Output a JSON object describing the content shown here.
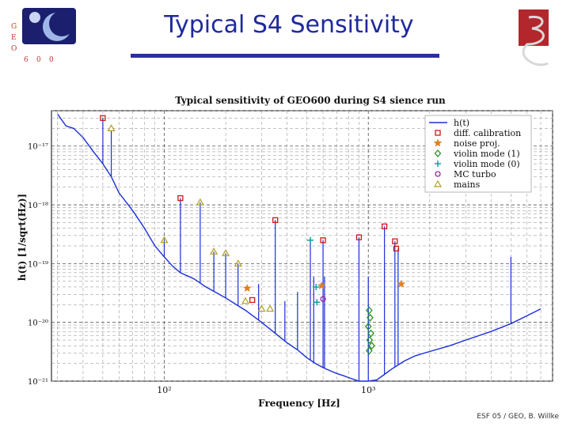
{
  "slide": {
    "title": "Typical S4 Sensitivity",
    "footer": "ESF 05 / GEO, B. Willke",
    "logo_left_letters": [
      "G",
      "E",
      "O",
      "6",
      "0",
      "0"
    ],
    "brand_color": "#1f2a9c",
    "logo_right_color": "#b3262b"
  },
  "chart_data": {
    "type": "line",
    "title": "Typical sensitivity of GEO600 during S4 sience run",
    "xlabel": "Frequency [Hz]",
    "ylabel": "h(t) [1/sqrt(Hz)]",
    "xscale": "log",
    "yscale": "log",
    "xlim": [
      28,
      8000
    ],
    "ylim": [
      1e-21,
      4e-17
    ],
    "x_ticks": [
      "10²",
      "10³"
    ],
    "y_ticks": [
      "10⁻¹⁷",
      "10⁻¹⁸",
      "10⁻¹⁹",
      "10⁻²⁰",
      "10⁻²¹"
    ],
    "grid": true,
    "legend_position": "top-right",
    "legend": [
      {
        "label": "h(t)",
        "marker": "line",
        "color": "#1a2fd6"
      },
      {
        "label": "diff. calibration",
        "marker": "square",
        "color": "#d01818"
      },
      {
        "label": "noise proj.",
        "marker": "star",
        "color": "#e08020"
      },
      {
        "label": "violin mode (1)",
        "marker": "diamond",
        "color": "#1a8c1a"
      },
      {
        "label": "violin mode (0)",
        "marker": "plus",
        "color": "#10a0a0"
      },
      {
        "label": "MC turbo",
        "marker": "circle",
        "color": "#a020a0"
      },
      {
        "label": "mains",
        "marker": "triangle",
        "color": "#b0a020"
      }
    ],
    "series": [
      {
        "name": "h(t)",
        "x": [
          30,
          33,
          36,
          40,
          45,
          50,
          55,
          60,
          70,
          80,
          90,
          100,
          110,
          120,
          140,
          160,
          180,
          200,
          250,
          300,
          350,
          400,
          450,
          500,
          550,
          600,
          650,
          700,
          750,
          800,
          900,
          1000,
          1100,
          1200,
          1300,
          1500,
          1700,
          2000,
          2500,
          3000,
          4000,
          5000,
          6000,
          7000
        ],
        "y": [
          3.5e-17,
          2.2e-17,
          2e-17,
          1.4e-17,
          8e-18,
          5e-18,
          3e-18,
          1.6e-18,
          8e-19,
          4e-19,
          2e-19,
          1.3e-19,
          9e-20,
          7e-20,
          5.5e-20,
          4e-20,
          3.2e-20,
          2.6e-20,
          1.6e-20,
          1e-20,
          6.5e-21,
          4.5e-21,
          3.4e-21,
          2.5e-21,
          2e-21,
          1.7e-21,
          1.5e-21,
          1.35e-21,
          1.25e-21,
          1.15e-21,
          1e-21,
          1e-21,
          1.05e-21,
          1.3e-21,
          1.6e-21,
          2.2e-21,
          2.7e-21,
          3.2e-21,
          4e-21,
          5e-21,
          7e-21,
          9.5e-21,
          1.3e-20,
          1.7e-20
        ]
      }
    ],
    "peaks": [
      {
        "x": 50,
        "y": 3e-17
      },
      {
        "x": 55,
        "y": 1.8e-17
      },
      {
        "x": 100,
        "y": 2.5e-19
      },
      {
        "x": 120,
        "y": 1.3e-18
      },
      {
        "x": 150,
        "y": 1.1e-18
      },
      {
        "x": 175,
        "y": 1.6e-19
      },
      {
        "x": 200,
        "y": 1.5e-19
      },
      {
        "x": 230,
        "y": 1e-19
      },
      {
        "x": 290,
        "y": 4.5e-20
      },
      {
        "x": 350,
        "y": 5.5e-19
      },
      {
        "x": 390,
        "y": 2.3e-20
      },
      {
        "x": 450,
        "y": 3.3e-20
      },
      {
        "x": 520,
        "y": 2.5e-19
      },
      {
        "x": 540,
        "y": 6e-20
      },
      {
        "x": 600,
        "y": 2.5e-19
      },
      {
        "x": 610,
        "y": 6e-20
      },
      {
        "x": 900,
        "y": 2.8e-19
      },
      {
        "x": 1000,
        "y": 6e-20
      },
      {
        "x": 1200,
        "y": 4.3e-19
      },
      {
        "x": 1350,
        "y": 2.4e-19
      },
      {
        "x": 1400,
        "y": 1.8e-19
      },
      {
        "x": 5000,
        "y": 1.3e-19
      }
    ],
    "markers": [
      {
        "type": "square",
        "x": 50,
        "y": 3e-17
      },
      {
        "type": "square",
        "x": 120,
        "y": 1.3e-18
      },
      {
        "type": "square",
        "x": 350,
        "y": 5.5e-19
      },
      {
        "type": "square",
        "x": 600,
        "y": 2.5e-19
      },
      {
        "type": "square",
        "x": 900,
        "y": 2.8e-19
      },
      {
        "type": "square",
        "x": 1200,
        "y": 4.3e-19
      },
      {
        "type": "square",
        "x": 1350,
        "y": 2.4e-19
      },
      {
        "type": "square",
        "x": 1370,
        "y": 1.8e-19
      },
      {
        "type": "square",
        "x": 270,
        "y": 2.4e-20
      },
      {
        "type": "triangle",
        "x": 55,
        "y": 2e-17
      },
      {
        "type": "triangle",
        "x": 100,
        "y": 2.5e-19
      },
      {
        "type": "triangle",
        "x": 150,
        "y": 1.1e-18
      },
      {
        "type": "triangle",
        "x": 175,
        "y": 1.6e-19
      },
      {
        "type": "triangle",
        "x": 200,
        "y": 1.5e-19
      },
      {
        "type": "triangle",
        "x": 230,
        "y": 1e-19
      },
      {
        "type": "triangle",
        "x": 250,
        "y": 2.3e-20
      },
      {
        "type": "triangle",
        "x": 300,
        "y": 1.7e-20
      },
      {
        "type": "triangle",
        "x": 330,
        "y": 1.7e-20
      },
      {
        "type": "star",
        "x": 255,
        "y": 3.8e-20
      },
      {
        "type": "star",
        "x": 590,
        "y": 4.2e-20
      },
      {
        "type": "star",
        "x": 1450,
        "y": 4.5e-20
      },
      {
        "type": "circle",
        "x": 600,
        "y": 2.5e-20
      },
      {
        "type": "plus",
        "x": 520,
        "y": 2.5e-19
      },
      {
        "type": "plus",
        "x": 555,
        "y": 4e-20
      },
      {
        "type": "plus",
        "x": 560,
        "y": 2.2e-20
      },
      {
        "type": "diamond",
        "x": 1010,
        "y": 1.6e-20
      },
      {
        "type": "diamond",
        "x": 1020,
        "y": 1.2e-20
      },
      {
        "type": "diamond",
        "x": 1000,
        "y": 8.5e-21
      },
      {
        "type": "diamond",
        "x": 1030,
        "y": 6.5e-21
      },
      {
        "type": "diamond",
        "x": 1015,
        "y": 5e-21
      },
      {
        "type": "diamond",
        "x": 1040,
        "y": 4e-21
      },
      {
        "type": "diamond",
        "x": 1010,
        "y": 3.3e-21
      }
    ]
  }
}
